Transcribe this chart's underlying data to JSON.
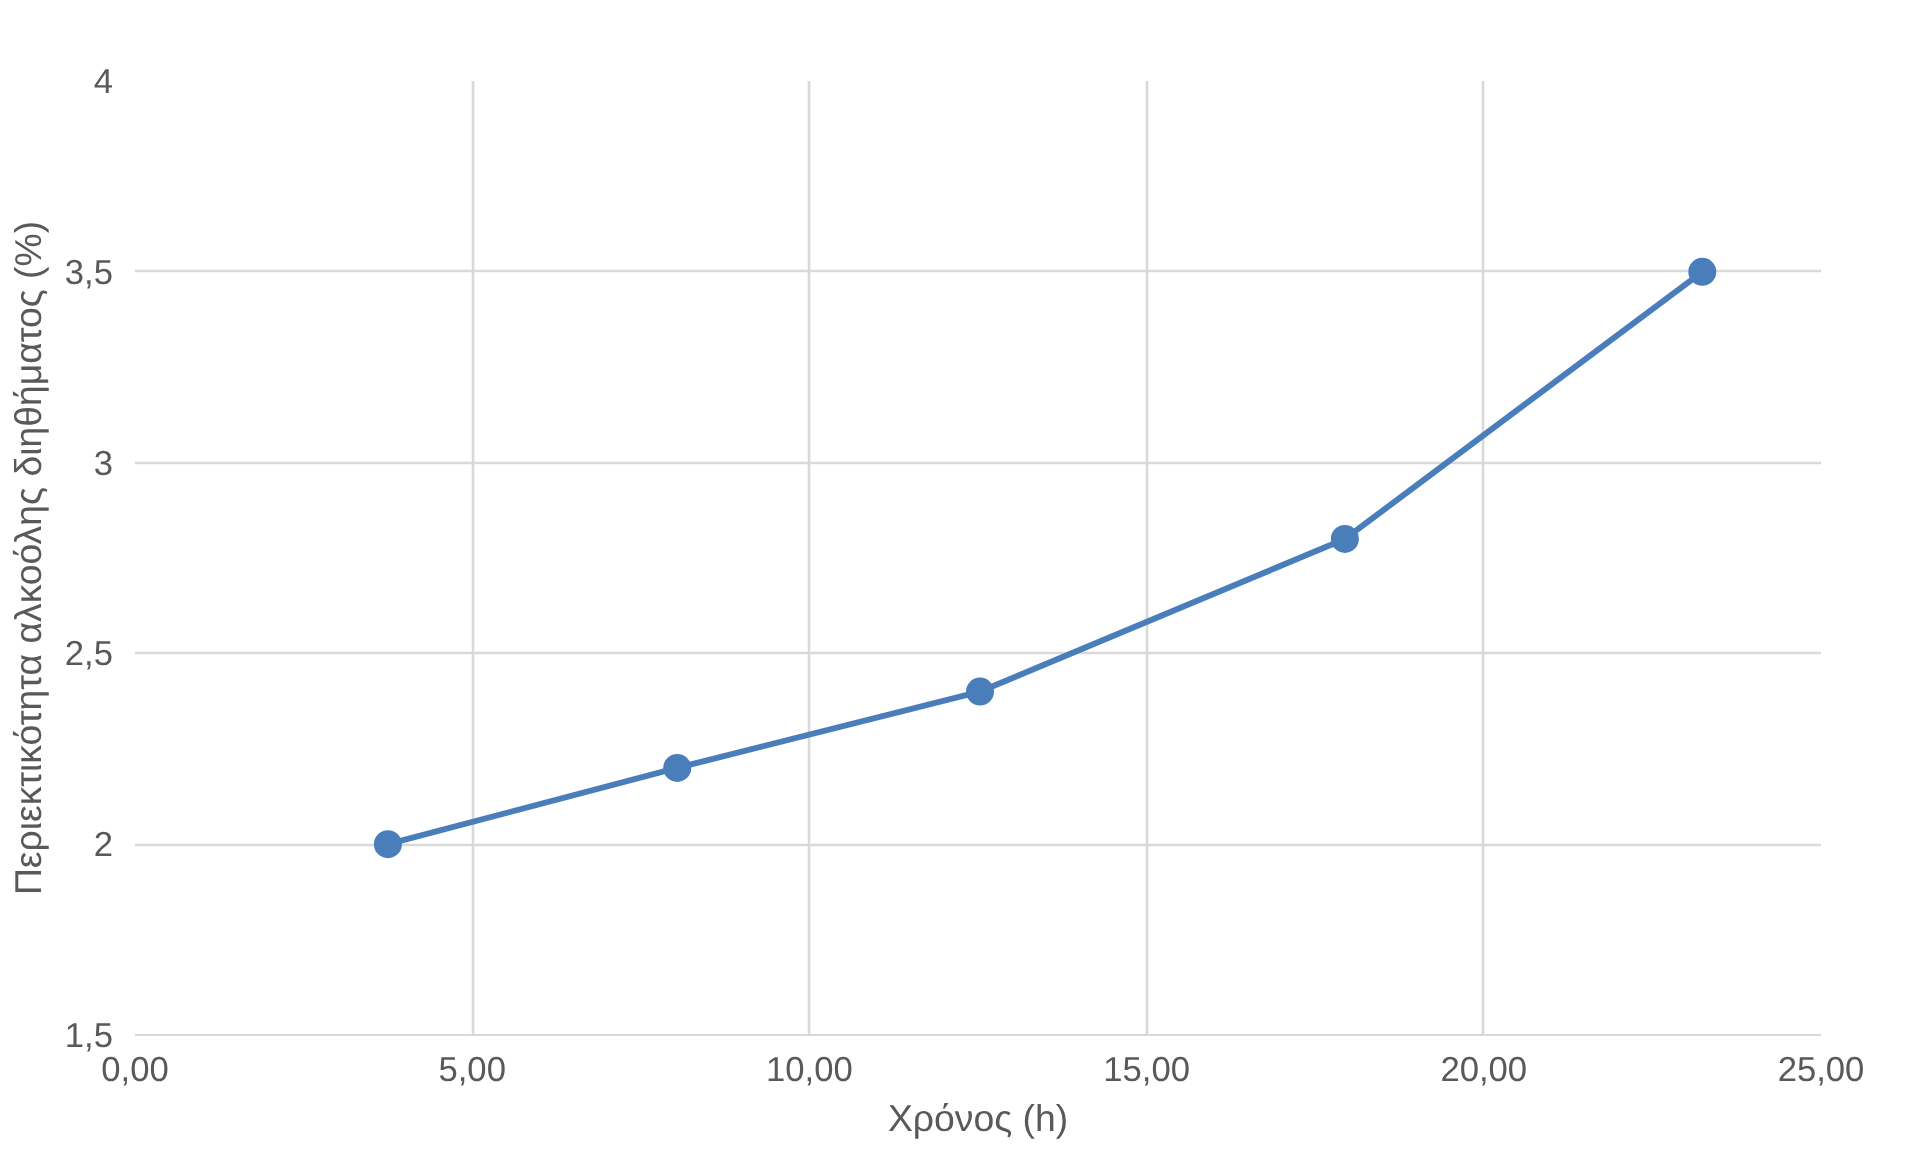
{
  "chart_data": {
    "type": "line",
    "xlabel": "Χρόνος (h)",
    "ylabel": "Περιεκτικότητα αλκοόλης διηθήματος (%)",
    "x": [
      3.75,
      8.04,
      12.53,
      17.94,
      23.24
    ],
    "series": [
      {
        "color": "#4a7ebb",
        "values": [
          2.0,
          2.2,
          2.4,
          2.8,
          3.5
        ]
      }
    ],
    "xlim": [
      0,
      25
    ],
    "ylim": [
      1.5,
      4
    ],
    "xticks": [
      {
        "value": 0,
        "label": "0,00"
      },
      {
        "value": 5,
        "label": "5,00"
      },
      {
        "value": 10,
        "label": "10,00"
      },
      {
        "value": 15,
        "label": "15,00"
      },
      {
        "value": 20,
        "label": "20,00"
      },
      {
        "value": 25,
        "label": "25,00"
      }
    ],
    "yticks": [
      {
        "value": 1.5,
        "label": "1,5"
      },
      2,
      {
        "value": 2.5,
        "label": "2,5"
      },
      3,
      {
        "value": 3.5,
        "label": "3,5"
      },
      4
    ],
    "grid": true,
    "marker": "circle",
    "line_style": "solid"
  }
}
